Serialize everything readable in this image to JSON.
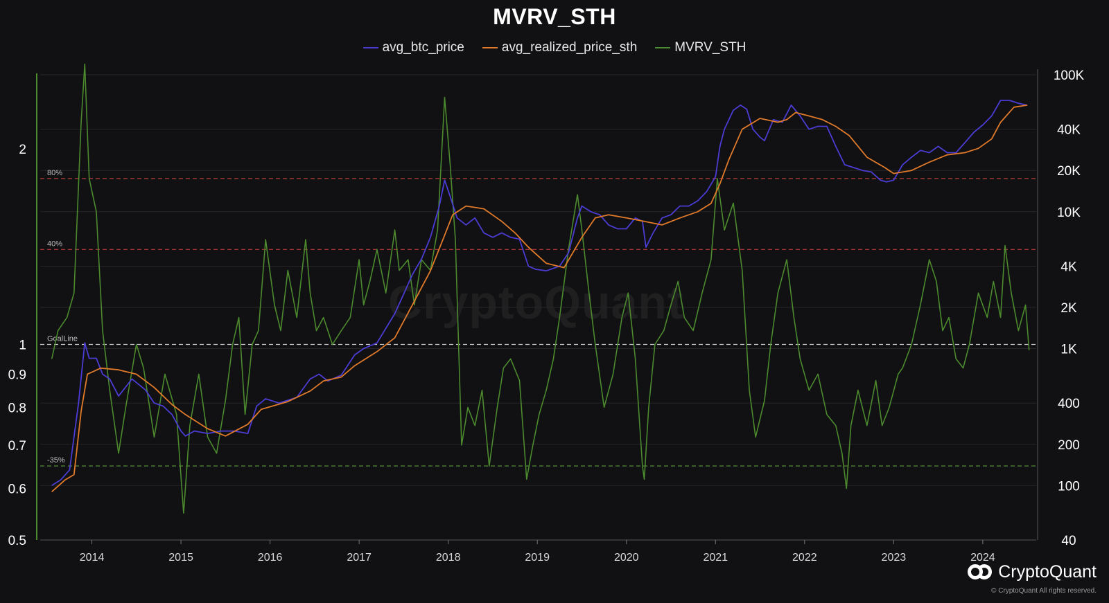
{
  "title": "MVRV_STH",
  "legend": [
    {
      "name": "avg_btc_price",
      "color": "#4b3cd4"
    },
    {
      "name": "avg_realized_price_sth",
      "color": "#e07a2a"
    },
    {
      "name": "MVRV_STH",
      "color": "#4c8a2e"
    }
  ],
  "watermark": "CryptoQuant",
  "brand": "CryptoQuant",
  "copyright": "© CryptoQuant All rights reserved.",
  "colors": {
    "background": "#111113",
    "btc_price": "#4b3cd4",
    "realized_price": "#e07a2a",
    "mvrv": "#4c8a2e",
    "red_ref": "#b43a3a",
    "green_ref": "#5f9a3c",
    "goal_ref": "#cfcfcf"
  },
  "chart_data": {
    "type": "line",
    "title": "MVRV_STH",
    "x_axis": {
      "ticks": [
        "2014",
        "2015",
        "2016",
        "2017",
        "2018",
        "2019",
        "2020",
        "2021",
        "2022",
        "2023",
        "2024"
      ],
      "range": [
        2013.42,
        2024.6
      ]
    },
    "y_left": {
      "scale": "log",
      "range": [
        0.5,
        2.6
      ],
      "ticks": [
        {
          "value": 0.5,
          "label": "0.5"
        },
        {
          "value": 0.6,
          "label": "0.6"
        },
        {
          "value": 0.7,
          "label": "0.7"
        },
        {
          "value": 0.8,
          "label": "0.8"
        },
        {
          "value": 0.9,
          "label": "0.9"
        },
        {
          "value": 1,
          "label": "1"
        },
        {
          "value": 2,
          "label": "2"
        }
      ]
    },
    "y_right": {
      "scale": "log",
      "range": [
        40,
        100000
      ],
      "ticks": [
        {
          "value": 40,
          "label": "40"
        },
        {
          "value": 100,
          "label": "100"
        },
        {
          "value": 200,
          "label": "200"
        },
        {
          "value": 400,
          "label": "400"
        },
        {
          "value": 1000,
          "label": "1K"
        },
        {
          "value": 2000,
          "label": "2K"
        },
        {
          "value": 4000,
          "label": "4K"
        },
        {
          "value": 10000,
          "label": "10K"
        },
        {
          "value": 20000,
          "label": "20K"
        },
        {
          "value": 40000,
          "label": "40K"
        },
        {
          "value": 100000,
          "label": "100K"
        }
      ]
    },
    "reference_lines": [
      {
        "label": "80%",
        "value": 1.8,
        "color": "#b43a3a",
        "axis": "left"
      },
      {
        "label": "40%",
        "value": 1.4,
        "color": "#b43a3a",
        "axis": "left"
      },
      {
        "label": "GoalLine",
        "value": 1.0,
        "color": "#cfcfcf",
        "axis": "left"
      },
      {
        "label": "-35%",
        "value": 0.65,
        "color": "#5f9a3c",
        "axis": "left"
      }
    ],
    "series": [
      {
        "name": "MVRV_STH",
        "axis": "left",
        "color": "#4c8a2e",
        "x": [
          2013.55,
          2013.62,
          2013.72,
          2013.8,
          2013.88,
          2013.92,
          2013.97,
          2014.05,
          2014.12,
          2014.2,
          2014.3,
          2014.38,
          2014.5,
          2014.58,
          2014.7,
          2014.82,
          2014.95,
          2015.03,
          2015.1,
          2015.2,
          2015.3,
          2015.4,
          2015.5,
          2015.58,
          2015.65,
          2015.72,
          2015.8,
          2015.87,
          2015.95,
          2016.05,
          2016.12,
          2016.2,
          2016.3,
          2016.4,
          2016.45,
          2016.52,
          2016.6,
          2016.7,
          2016.8,
          2016.9,
          2017.0,
          2017.05,
          2017.12,
          2017.2,
          2017.3,
          2017.4,
          2017.45,
          2017.55,
          2017.62,
          2017.7,
          2017.8,
          2017.88,
          2017.96,
          2018.02,
          2018.08,
          2018.15,
          2018.22,
          2018.3,
          2018.38,
          2018.46,
          2018.55,
          2018.62,
          2018.7,
          2018.8,
          2018.88,
          2018.95,
          2019.02,
          2019.1,
          2019.18,
          2019.25,
          2019.35,
          2019.45,
          2019.5,
          2019.58,
          2019.65,
          2019.75,
          2019.85,
          2019.95,
          2020.02,
          2020.1,
          2020.18,
          2020.2,
          2020.25,
          2020.32,
          2020.42,
          2020.5,
          2020.58,
          2020.65,
          2020.75,
          2020.85,
          2020.95,
          2021.02,
          2021.1,
          2021.2,
          2021.3,
          2021.38,
          2021.45,
          2021.55,
          2021.62,
          2021.7,
          2021.8,
          2021.88,
          2021.95,
          2022.05,
          2022.15,
          2022.25,
          2022.35,
          2022.42,
          2022.47,
          2022.52,
          2022.6,
          2022.7,
          2022.8,
          2022.87,
          2022.95,
          2023.05,
          2023.1,
          2023.2,
          2023.3,
          2023.4,
          2023.48,
          2023.55,
          2023.62,
          2023.7,
          2023.78,
          2023.85,
          2023.95,
          2024.05,
          2024.12,
          2024.2,
          2024.25,
          2024.32,
          2024.4,
          2024.48,
          2024.52
        ],
        "y": [
          0.95,
          1.05,
          1.1,
          1.2,
          2.2,
          2.7,
          1.8,
          1.6,
          1.05,
          0.85,
          0.68,
          0.8,
          1.0,
          0.92,
          0.72,
          0.9,
          0.78,
          0.55,
          0.75,
          0.9,
          0.72,
          0.68,
          0.82,
          1.0,
          1.1,
          0.78,
          1.0,
          1.05,
          1.45,
          1.15,
          1.05,
          1.3,
          1.1,
          1.45,
          1.2,
          1.05,
          1.1,
          1.0,
          1.05,
          1.1,
          1.35,
          1.15,
          1.25,
          1.4,
          1.2,
          1.5,
          1.3,
          1.35,
          1.15,
          1.35,
          1.3,
          1.5,
          2.4,
          1.9,
          1.45,
          0.7,
          0.8,
          0.75,
          0.85,
          0.65,
          0.8,
          0.92,
          0.95,
          0.88,
          0.62,
          0.7,
          0.78,
          0.85,
          0.95,
          1.1,
          1.4,
          1.7,
          1.5,
          1.2,
          1.0,
          0.8,
          0.9,
          1.1,
          1.2,
          0.95,
          0.65,
          0.62,
          0.8,
          1.0,
          1.05,
          1.15,
          1.25,
          1.1,
          1.05,
          1.2,
          1.35,
          1.8,
          1.5,
          1.65,
          1.3,
          0.85,
          0.72,
          0.82,
          1.0,
          1.2,
          1.35,
          1.1,
          0.95,
          0.85,
          0.9,
          0.78,
          0.75,
          0.68,
          0.6,
          0.75,
          0.85,
          0.75,
          0.88,
          0.75,
          0.8,
          0.9,
          0.92,
          1.0,
          1.15,
          1.35,
          1.25,
          1.05,
          1.1,
          0.95,
          0.92,
          1.0,
          1.2,
          1.1,
          1.25,
          1.1,
          1.42,
          1.2,
          1.05,
          1.15,
          0.98
        ]
      },
      {
        "name": "avg_btc_price",
        "axis": "right",
        "color": "#4b3cd4",
        "x": [
          2013.55,
          2013.65,
          2013.75,
          2013.85,
          2013.92,
          2013.97,
          2014.05,
          2014.12,
          2014.2,
          2014.3,
          2014.45,
          2014.6,
          2014.7,
          2014.8,
          2014.9,
          2015.0,
          2015.05,
          2015.15,
          2015.3,
          2015.45,
          2015.6,
          2015.75,
          2015.85,
          2015.95,
          2016.1,
          2016.3,
          2016.45,
          2016.55,
          2016.65,
          2016.8,
          2016.95,
          2017.05,
          2017.2,
          2017.4,
          2017.5,
          2017.6,
          2017.7,
          2017.8,
          2017.9,
          2017.96,
          2018.02,
          2018.1,
          2018.2,
          2018.3,
          2018.4,
          2018.5,
          2018.6,
          2018.7,
          2018.8,
          2018.9,
          2018.98,
          2019.1,
          2019.25,
          2019.35,
          2019.45,
          2019.5,
          2019.6,
          2019.7,
          2019.8,
          2019.9,
          2020.0,
          2020.1,
          2020.18,
          2020.22,
          2020.3,
          2020.4,
          2020.5,
          2020.6,
          2020.7,
          2020.8,
          2020.9,
          2021.0,
          2021.05,
          2021.1,
          2021.2,
          2021.28,
          2021.35,
          2021.42,
          2021.5,
          2021.55,
          2021.65,
          2021.75,
          2021.85,
          2021.95,
          2022.05,
          2022.15,
          2022.25,
          2022.35,
          2022.45,
          2022.55,
          2022.65,
          2022.75,
          2022.85,
          2022.92,
          2023.0,
          2023.1,
          2023.2,
          2023.3,
          2023.4,
          2023.5,
          2023.6,
          2023.7,
          2023.8,
          2023.9,
          2024.0,
          2024.1,
          2024.2,
          2024.3,
          2024.4,
          2024.5
        ],
        "y": [
          100,
          110,
          130,
          400,
          1100,
          850,
          850,
          650,
          600,
          450,
          600,
          500,
          400,
          380,
          330,
          250,
          230,
          250,
          240,
          250,
          250,
          240,
          380,
          430,
          400,
          440,
          600,
          650,
          580,
          640,
          900,
          1000,
          1100,
          1800,
          2500,
          3500,
          4500,
          6500,
          11000,
          17000,
          13000,
          9000,
          8000,
          9000,
          7000,
          6500,
          7000,
          6500,
          6300,
          4000,
          3800,
          3700,
          4000,
          5000,
          9000,
          11000,
          10000,
          9500,
          8000,
          7500,
          7500,
          9000,
          8500,
          5500,
          7000,
          9000,
          9500,
          11000,
          11000,
          12000,
          14000,
          18000,
          30000,
          40000,
          55000,
          60000,
          56000,
          40000,
          35000,
          33000,
          47000,
          45000,
          60000,
          50000,
          40000,
          42000,
          42000,
          30000,
          22000,
          21000,
          20000,
          19500,
          17000,
          16500,
          17000,
          22000,
          25000,
          28000,
          27000,
          30000,
          27000,
          27000,
          32000,
          38000,
          43000,
          50000,
          65000,
          65000,
          62000,
          60000
        ]
      },
      {
        "name": "avg_realized_price_sth",
        "axis": "right",
        "color": "#e07a2a",
        "x": [
          2013.55,
          2013.7,
          2013.8,
          2013.88,
          2013.95,
          2014.1,
          2014.3,
          2014.5,
          2014.7,
          2014.9,
          2015.05,
          2015.3,
          2015.5,
          2015.75,
          2015.9,
          2016.2,
          2016.45,
          2016.6,
          2016.8,
          2016.95,
          2017.2,
          2017.4,
          2017.6,
          2017.8,
          2017.95,
          2018.05,
          2018.2,
          2018.4,
          2018.6,
          2018.75,
          2018.9,
          2019.1,
          2019.3,
          2019.5,
          2019.65,
          2019.8,
          2020.0,
          2020.2,
          2020.4,
          2020.6,
          2020.8,
          2020.95,
          2021.05,
          2021.15,
          2021.3,
          2021.5,
          2021.7,
          2021.8,
          2021.9,
          2022.05,
          2022.2,
          2022.35,
          2022.5,
          2022.7,
          2022.9,
          2023.0,
          2023.2,
          2023.4,
          2023.6,
          2023.8,
          2023.95,
          2024.1,
          2024.2,
          2024.35,
          2024.5
        ],
        "y": [
          90,
          110,
          120,
          350,
          650,
          720,
          700,
          650,
          520,
          390,
          330,
          260,
          230,
          280,
          360,
          410,
          490,
          580,
          620,
          750,
          950,
          1200,
          2100,
          3700,
          6500,
          9500,
          11000,
          10500,
          8500,
          7000,
          5500,
          4200,
          3900,
          6500,
          9000,
          9500,
          9000,
          8500,
          8000,
          9000,
          10000,
          11500,
          16000,
          24000,
          40000,
          48000,
          45000,
          47000,
          53000,
          50000,
          47000,
          42000,
          36000,
          25000,
          21000,
          19000,
          20000,
          23000,
          26000,
          27000,
          29000,
          34000,
          45000,
          58000,
          60000
        ]
      }
    ]
  }
}
